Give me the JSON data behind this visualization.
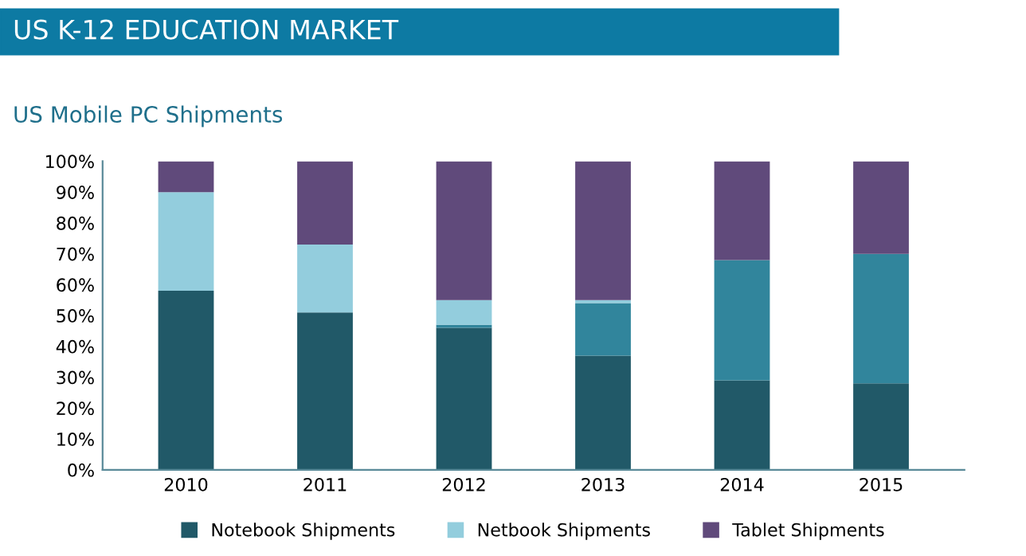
{
  "chart_data": {
    "type": "bar",
    "title": "US K-12 EDUCATION MARKET",
    "subtitle": "US Mobile PC Shipments",
    "stacked": true,
    "categories": [
      "2010",
      "2011",
      "2012",
      "2013",
      "2014",
      "2015"
    ],
    "series": [
      {
        "name": "Notebook Shipments",
        "color": "#215968",
        "values": [
          58,
          51,
          46,
          37,
          29,
          28
        ]
      },
      {
        "color": "#31859c",
        "values": [
          0,
          0,
          1,
          17,
          39,
          42
        ]
      },
      {
        "name": "Netbook Shipments",
        "color": "#93cddd",
        "values": [
          32,
          22,
          8,
          1,
          0,
          0
        ]
      },
      {
        "name": "Tablet Shipments",
        "color": "#604a7b",
        "values": [
          10,
          27,
          45,
          45,
          32,
          30
        ]
      }
    ],
    "ylim": [
      0,
      100
    ],
    "yticks": [
      {
        "value": 0,
        "label": "0%"
      },
      {
        "value": 10,
        "label": "10%"
      },
      {
        "value": 20,
        "label": "20%"
      },
      {
        "value": 30,
        "label": "30%"
      },
      {
        "value": 40,
        "label": "40%"
      },
      {
        "value": 50,
        "label": "50%"
      },
      {
        "value": 60,
        "label": "60%"
      },
      {
        "value": 70,
        "label": "70%"
      },
      {
        "value": 80,
        "label": "80%"
      },
      {
        "value": 90,
        "label": "90%"
      },
      {
        "value": 100,
        "label": "100%"
      }
    ],
    "grid": false,
    "legend": "bottom"
  }
}
